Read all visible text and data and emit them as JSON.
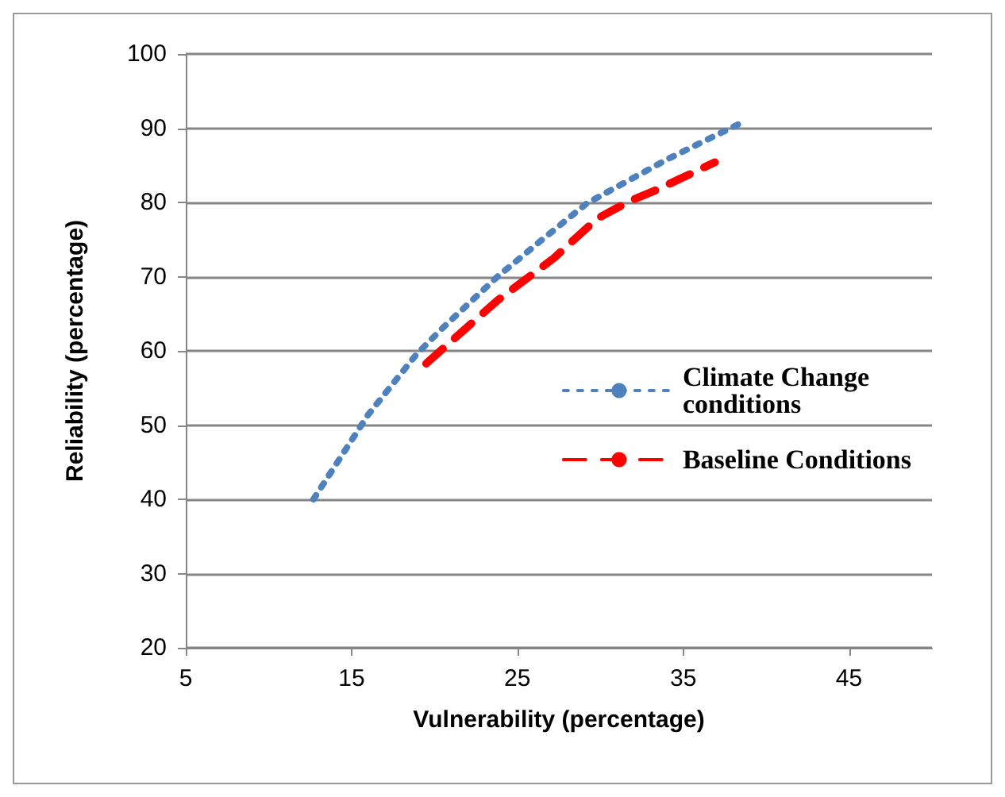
{
  "chart_data": {
    "type": "line",
    "xlabel": "Vulnerability (percentage)",
    "ylabel": "Reliability (percentage)",
    "xlim": [
      5,
      50
    ],
    "xticks": [
      5,
      15,
      25,
      35,
      45
    ],
    "ylim": [
      20,
      100
    ],
    "yticks": [
      20,
      30,
      40,
      50,
      60,
      70,
      80,
      90,
      100
    ],
    "grid": "y",
    "legend": "right",
    "marker": "none",
    "series": [
      {
        "name": "Climate Change conditions",
        "color": "#4f81bd",
        "line_style": "dotted",
        "x": [
          12.7,
          16.0,
          18.9,
          20.5,
          23.8,
          26.5,
          29.2,
          34.2,
          38.3
        ],
        "values": [
          40,
          51.4,
          59.5,
          63.1,
          70,
          75,
          79.9,
          86,
          90.5
        ]
      },
      {
        "name": "Baseline Conditions",
        "color": "#ff0000",
        "line_style": "dashed",
        "x": [
          19.5,
          23.8,
          27.2,
          29.8,
          31.7,
          33.4,
          36.9
        ],
        "values": [
          58.3,
          66.8,
          72.5,
          77.8,
          80.1,
          81.7,
          85.4
        ]
      }
    ]
  }
}
